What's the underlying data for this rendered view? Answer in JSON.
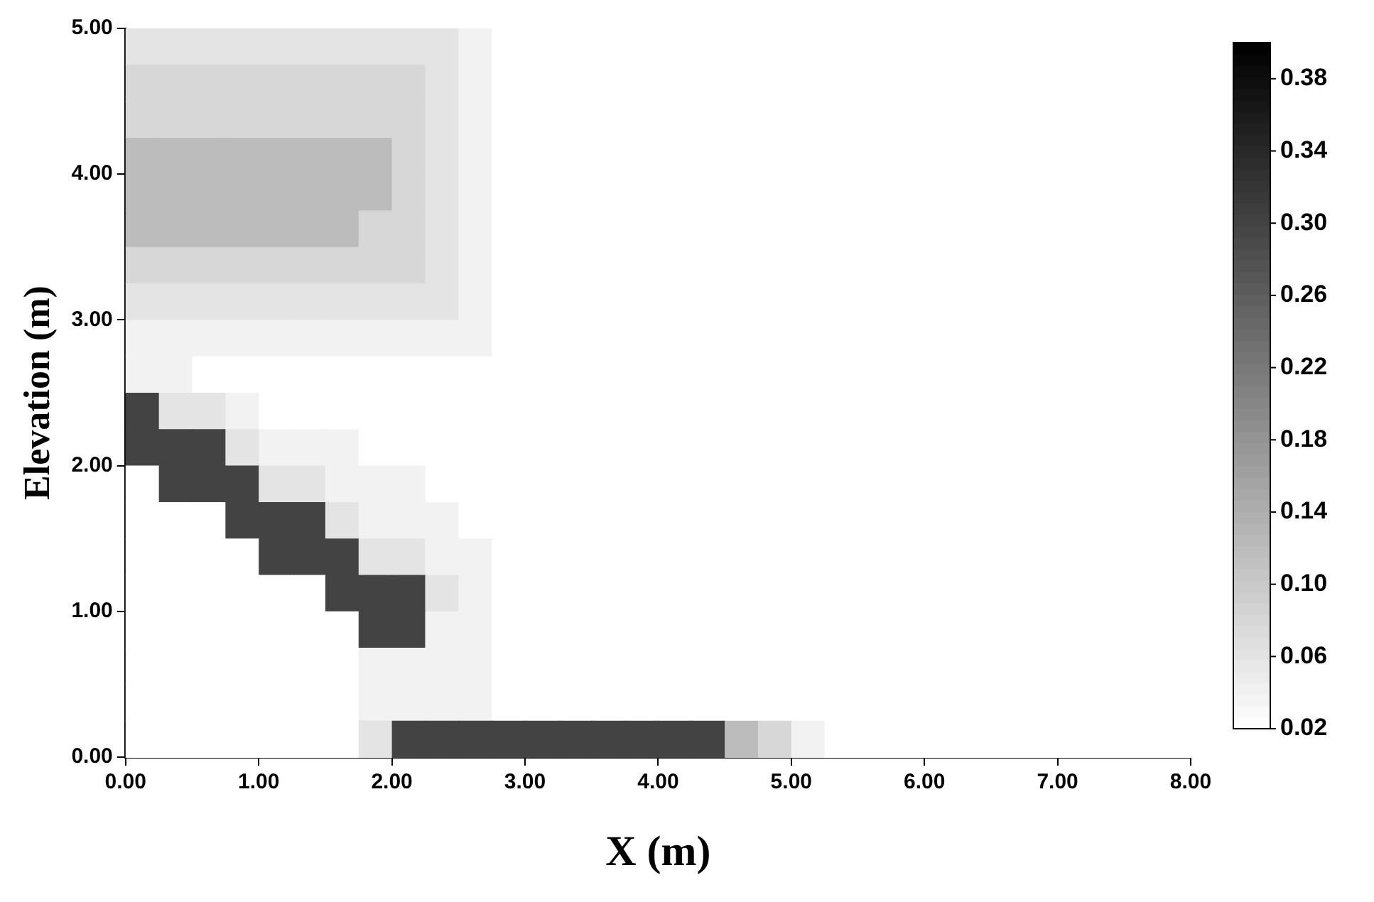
{
  "chart_data": {
    "type": "heatmap",
    "xlabel": "X (m)",
    "ylabel": "Elevation (m)",
    "x": [
      0.125,
      0.375,
      0.625,
      0.875,
      1.125,
      1.375,
      1.625,
      1.875,
      2.125,
      2.375,
      2.625,
      2.875,
      3.125,
      3.375,
      3.625,
      3.875,
      4.125,
      4.375,
      4.625,
      4.875,
      5.125,
      5.375,
      5.625,
      5.875,
      6.125,
      6.375,
      6.625,
      6.875,
      7.125,
      7.375,
      7.625,
      7.875
    ],
    "y": [
      4.875,
      4.625,
      4.375,
      4.125,
      3.875,
      3.625,
      3.375,
      3.125,
      2.875,
      2.625,
      2.375,
      2.125,
      1.875,
      1.625,
      1.375,
      1.125,
      0.875,
      0.625,
      0.375,
      0.125
    ],
    "cells": [
      [
        0.06,
        0.06,
        0.06,
        0.06,
        0.06,
        0.06,
        0.06,
        0.06,
        0.06,
        0.06,
        0.04,
        0.02,
        0.02,
        0.02,
        0.02,
        0.02,
        0.02,
        0.02,
        0.02,
        0.02,
        0.02,
        0.02,
        0.02,
        0.02,
        0.02,
        0.02,
        0.02,
        0.02,
        0.02,
        0.02,
        0.02,
        0.02
      ],
      [
        0.08,
        0.08,
        0.08,
        0.08,
        0.08,
        0.08,
        0.08,
        0.08,
        0.08,
        0.06,
        0.04,
        0.02,
        0.02,
        0.02,
        0.02,
        0.02,
        0.02,
        0.02,
        0.02,
        0.02,
        0.02,
        0.02,
        0.02,
        0.02,
        0.02,
        0.02,
        0.02,
        0.02,
        0.02,
        0.02,
        0.02,
        0.02
      ],
      [
        0.08,
        0.08,
        0.08,
        0.08,
        0.08,
        0.08,
        0.08,
        0.08,
        0.08,
        0.06,
        0.04,
        0.02,
        0.02,
        0.02,
        0.02,
        0.02,
        0.02,
        0.02,
        0.02,
        0.02,
        0.02,
        0.02,
        0.02,
        0.02,
        0.02,
        0.02,
        0.02,
        0.02,
        0.02,
        0.02,
        0.02,
        0.02
      ],
      [
        0.12,
        0.12,
        0.12,
        0.12,
        0.12,
        0.12,
        0.12,
        0.12,
        0.08,
        0.06,
        0.04,
        0.02,
        0.02,
        0.02,
        0.02,
        0.02,
        0.02,
        0.02,
        0.02,
        0.02,
        0.02,
        0.02,
        0.02,
        0.02,
        0.02,
        0.02,
        0.02,
        0.02,
        0.02,
        0.02,
        0.02,
        0.02
      ],
      [
        0.12,
        0.12,
        0.12,
        0.12,
        0.12,
        0.12,
        0.12,
        0.12,
        0.08,
        0.06,
        0.04,
        0.02,
        0.02,
        0.02,
        0.02,
        0.02,
        0.02,
        0.02,
        0.02,
        0.02,
        0.02,
        0.02,
        0.02,
        0.02,
        0.02,
        0.02,
        0.02,
        0.02,
        0.02,
        0.02,
        0.02,
        0.02
      ],
      [
        0.12,
        0.12,
        0.12,
        0.12,
        0.12,
        0.12,
        0.12,
        0.08,
        0.08,
        0.06,
        0.04,
        0.02,
        0.02,
        0.02,
        0.02,
        0.02,
        0.02,
        0.02,
        0.02,
        0.02,
        0.02,
        0.02,
        0.02,
        0.02,
        0.02,
        0.02,
        0.02,
        0.02,
        0.02,
        0.02,
        0.02,
        0.02
      ],
      [
        0.08,
        0.08,
        0.08,
        0.08,
        0.08,
        0.08,
        0.08,
        0.08,
        0.08,
        0.06,
        0.04,
        0.02,
        0.02,
        0.02,
        0.02,
        0.02,
        0.02,
        0.02,
        0.02,
        0.02,
        0.02,
        0.02,
        0.02,
        0.02,
        0.02,
        0.02,
        0.02,
        0.02,
        0.02,
        0.02,
        0.02,
        0.02
      ],
      [
        0.06,
        0.06,
        0.06,
        0.06,
        0.06,
        0.06,
        0.06,
        0.06,
        0.06,
        0.06,
        0.04,
        0.02,
        0.02,
        0.02,
        0.02,
        0.02,
        0.02,
        0.02,
        0.02,
        0.02,
        0.02,
        0.02,
        0.02,
        0.02,
        0.02,
        0.02,
        0.02,
        0.02,
        0.02,
        0.02,
        0.02,
        0.02
      ],
      [
        0.04,
        0.04,
        0.04,
        0.04,
        0.04,
        0.04,
        0.04,
        0.04,
        0.04,
        0.04,
        0.04,
        0.02,
        0.02,
        0.02,
        0.02,
        0.02,
        0.02,
        0.02,
        0.02,
        0.02,
        0.02,
        0.02,
        0.02,
        0.02,
        0.02,
        0.02,
        0.02,
        0.02,
        0.02,
        0.02,
        0.02,
        0.02
      ],
      [
        0.04,
        0.04,
        0.02,
        0.02,
        0.02,
        0.02,
        0.02,
        0.02,
        0.02,
        0.02,
        0.02,
        0.02,
        0.02,
        0.02,
        0.02,
        0.02,
        0.02,
        0.02,
        0.02,
        0.02,
        0.02,
        0.02,
        0.02,
        0.02,
        0.02,
        0.02,
        0.02,
        0.02,
        0.02,
        0.02,
        0.02,
        0.02
      ],
      [
        0.3,
        0.06,
        0.06,
        0.04,
        0.02,
        0.02,
        0.02,
        0.02,
        0.02,
        0.02,
        0.02,
        0.02,
        0.02,
        0.02,
        0.02,
        0.02,
        0.02,
        0.02,
        0.02,
        0.02,
        0.02,
        0.02,
        0.02,
        0.02,
        0.02,
        0.02,
        0.02,
        0.02,
        0.02,
        0.02,
        0.02,
        0.02
      ],
      [
        0.3,
        0.3,
        0.3,
        0.06,
        0.04,
        0.04,
        0.04,
        0.02,
        0.02,
        0.02,
        0.02,
        0.02,
        0.02,
        0.02,
        0.02,
        0.02,
        0.02,
        0.02,
        0.02,
        0.02,
        0.02,
        0.02,
        0.02,
        0.02,
        0.02,
        0.02,
        0.02,
        0.02,
        0.02,
        0.02,
        0.02,
        0.02
      ],
      [
        0.02,
        0.3,
        0.3,
        0.3,
        0.06,
        0.06,
        0.04,
        0.04,
        0.04,
        0.02,
        0.02,
        0.02,
        0.02,
        0.02,
        0.02,
        0.02,
        0.02,
        0.02,
        0.02,
        0.02,
        0.02,
        0.02,
        0.02,
        0.02,
        0.02,
        0.02,
        0.02,
        0.02,
        0.02,
        0.02,
        0.02,
        0.02
      ],
      [
        0.02,
        0.02,
        0.02,
        0.3,
        0.3,
        0.3,
        0.06,
        0.04,
        0.04,
        0.04,
        0.02,
        0.02,
        0.02,
        0.02,
        0.02,
        0.02,
        0.02,
        0.02,
        0.02,
        0.02,
        0.02,
        0.02,
        0.02,
        0.02,
        0.02,
        0.02,
        0.02,
        0.02,
        0.02,
        0.02,
        0.02,
        0.02
      ],
      [
        0.02,
        0.02,
        0.02,
        0.02,
        0.3,
        0.3,
        0.3,
        0.06,
        0.06,
        0.04,
        0.04,
        0.02,
        0.02,
        0.02,
        0.02,
        0.02,
        0.02,
        0.02,
        0.02,
        0.02,
        0.02,
        0.02,
        0.02,
        0.02,
        0.02,
        0.02,
        0.02,
        0.02,
        0.02,
        0.02,
        0.02,
        0.02
      ],
      [
        0.02,
        0.02,
        0.02,
        0.02,
        0.02,
        0.02,
        0.3,
        0.3,
        0.3,
        0.06,
        0.04,
        0.02,
        0.02,
        0.02,
        0.02,
        0.02,
        0.02,
        0.02,
        0.02,
        0.02,
        0.02,
        0.02,
        0.02,
        0.02,
        0.02,
        0.02,
        0.02,
        0.02,
        0.02,
        0.02,
        0.02,
        0.02
      ],
      [
        0.02,
        0.02,
        0.02,
        0.02,
        0.02,
        0.02,
        0.02,
        0.3,
        0.3,
        0.04,
        0.04,
        0.02,
        0.02,
        0.02,
        0.02,
        0.02,
        0.02,
        0.02,
        0.02,
        0.02,
        0.02,
        0.02,
        0.02,
        0.02,
        0.02,
        0.02,
        0.02,
        0.02,
        0.02,
        0.02,
        0.02,
        0.02
      ],
      [
        0.02,
        0.02,
        0.02,
        0.02,
        0.02,
        0.02,
        0.02,
        0.04,
        0.04,
        0.04,
        0.04,
        0.02,
        0.02,
        0.02,
        0.02,
        0.02,
        0.02,
        0.02,
        0.02,
        0.02,
        0.02,
        0.02,
        0.02,
        0.02,
        0.02,
        0.02,
        0.02,
        0.02,
        0.02,
        0.02,
        0.02,
        0.02
      ],
      [
        0.02,
        0.02,
        0.02,
        0.02,
        0.02,
        0.02,
        0.02,
        0.04,
        0.04,
        0.04,
        0.04,
        0.02,
        0.02,
        0.02,
        0.02,
        0.02,
        0.02,
        0.02,
        0.02,
        0.02,
        0.02,
        0.02,
        0.02,
        0.02,
        0.02,
        0.02,
        0.02,
        0.02,
        0.02,
        0.02,
        0.02,
        0.02
      ],
      [
        0.02,
        0.02,
        0.02,
        0.02,
        0.02,
        0.02,
        0.02,
        0.06,
        0.3,
        0.3,
        0.3,
        0.3,
        0.3,
        0.3,
        0.3,
        0.3,
        0.3,
        0.3,
        0.12,
        0.08,
        0.04,
        0.02,
        0.02,
        0.02,
        0.02,
        0.02,
        0.02,
        0.02,
        0.02,
        0.02,
        0.02,
        0.02
      ]
    ],
    "xlim": [
      0,
      8
    ],
    "xticks": [
      {
        "value": 0,
        "label": "0.00"
      },
      {
        "value": 1,
        "label": "1.00"
      },
      {
        "value": 2,
        "label": "2.00"
      },
      {
        "value": 3,
        "label": "3.00"
      },
      {
        "value": 4,
        "label": "4.00"
      },
      {
        "value": 5,
        "label": "5.00"
      },
      {
        "value": 6,
        "label": "6.00"
      },
      {
        "value": 7,
        "label": "7.00"
      },
      {
        "value": 8,
        "label": "8.00"
      }
    ],
    "ylim": [
      0,
      5
    ],
    "yticks": [
      {
        "value": 0,
        "label": "0.00"
      },
      {
        "value": 1,
        "label": "1.00"
      },
      {
        "value": 2,
        "label": "2.00"
      },
      {
        "value": 3,
        "label": "3.00"
      },
      {
        "value": 4,
        "label": "4.00"
      },
      {
        "value": 5,
        "label": "5.00"
      }
    ],
    "clim": [
      0.02,
      0.4
    ],
    "cticks": [
      0.02,
      0.06,
      {
        "value": 0.1,
        "label": "0.10"
      },
      0.14,
      0.18,
      0.22,
      0.26,
      {
        "value": 0.3,
        "label": "0.30"
      },
      0.34,
      0.38
    ],
    "grid": false
  }
}
